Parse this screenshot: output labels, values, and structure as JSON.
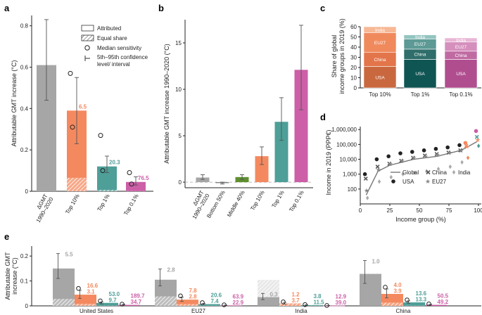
{
  "colors": {
    "grey": "#a6a6a6",
    "orange": "#f4895f",
    "teal": "#4e9f98",
    "pink": "#cc5fa7",
    "green": "#5e8f2f",
    "darkgrey": "#7a7a7a",
    "usa_a": "#c9683f",
    "china_a": "#e3754a",
    "eu_a": "#f08a5d",
    "india_a": "#f6b895",
    "usa_b": "#0f5553",
    "china_b": "#2f6e6a",
    "eu_b": "#5d9a95",
    "india_b": "#93c4c0",
    "usa_c": "#b04d8f",
    "china_c": "#c06aa2",
    "eu_c": "#d58fbd",
    "india_c": "#e8b6d5"
  },
  "panel_letters": [
    "a",
    "b",
    "c",
    "d",
    "e"
  ],
  "chart_data": [
    {
      "panel": "a",
      "type": "bar",
      "ylabel": "Attributable GMT increase (°C)",
      "ylim": [
        0,
        0.85
      ],
      "yticks": [
        "0",
        "0.2",
        "0.4",
        "0.6",
        "0.8"
      ],
      "ytick_values": [
        0,
        0.2,
        0.4,
        0.6,
        0.8
      ],
      "categories": [
        "ΔGMT\n1990–2020",
        "Top 10%",
        "Top 1%",
        "Top 0.1%"
      ],
      "values": [
        0.61,
        0.39,
        0.12,
        0.045
      ],
      "equal_share": [
        0,
        0.065,
        0.007,
        0.001
      ],
      "ci_low": [
        0.44,
        0.23,
        0.09,
        0.03
      ],
      "ci_high": [
        0.83,
        0.55,
        0.17,
        0.07
      ],
      "median_sensitivity": [
        null,
        0.57,
        0.27,
        0.09
      ],
      "median_low": [
        null,
        0.31,
        0.1,
        0.035
      ],
      "ratio_labels": [
        "",
        "6.5",
        "20.3",
        "76.5"
      ],
      "legend": {
        "attributed": "Attributed",
        "equal_share": "Equal share",
        "median": "Median sensitivity",
        "ci_line1": "5th–95th confidence",
        "ci_line2": "level/ interval"
      }
    },
    {
      "panel": "b",
      "type": "bar",
      "ylabel": "Attributable GMT increase 1990–2020 (°C)",
      "ylim": [
        -0.6,
        17.5
      ],
      "yticks": [
        "0",
        "5",
        "10",
        "15"
      ],
      "ytick_values": [
        0,
        5,
        10,
        15
      ],
      "categories": [
        "ΔGMT\n1990–2020",
        "Bottom 50%",
        "Middle 40%",
        "Top 10%",
        "Top 1%",
        "Top 0.1%"
      ],
      "values": [
        0.5,
        -0.1,
        0.55,
        2.8,
        6.5,
        12.1
      ],
      "ci_low": [
        0.3,
        -0.2,
        0.3,
        1.9,
        4.5,
        7.8
      ],
      "ci_high": [
        0.8,
        0.0,
        0.8,
        3.8,
        9.1,
        16.9
      ]
    },
    {
      "panel": "c",
      "type": "stacked_bar",
      "ylabel": "Share of global income groups in 2019 (%)",
      "ylim": [
        0,
        60
      ],
      "yticks": [
        "0",
        "10",
        "20",
        "30",
        "40",
        "50",
        "60"
      ],
      "ytick_values": [
        0,
        10,
        20,
        30,
        40,
        50,
        60
      ],
      "categories": [
        "Top 10%",
        "Top 1%",
        "Top 0.1%"
      ],
      "series": [
        {
          "name": "USA",
          "values": [
            21,
            28,
            28
          ]
        },
        {
          "name": "China",
          "values": [
            14,
            10,
            8
          ]
        },
        {
          "name": "EU27",
          "values": [
            19,
            10,
            9
          ]
        },
        {
          "name": "India",
          "values": [
            6,
            4,
            4
          ]
        }
      ]
    },
    {
      "panel": "d",
      "type": "scatter",
      "xlabel": "Income group (%)",
      "ylabel": "Income in 2019 (PPP€)",
      "xlim": [
        0,
        100
      ],
      "ylog_range": [
        1,
        6.2
      ],
      "xticks": [
        "0",
        "25",
        "50",
        "75",
        "100"
      ],
      "xtick_values": [
        0,
        25,
        50,
        75,
        100
      ],
      "yticks": [
        "100",
        "1,000",
        "10,000",
        "100,000",
        "1,000,000"
      ],
      "ytick_values": [
        2,
        3,
        4,
        5,
        6
      ],
      "x": [
        5,
        15,
        25,
        35,
        45,
        55,
        65,
        75,
        85,
        90,
        99
      ],
      "series": [
        {
          "name": "Global",
          "log_values": [
            1.6,
            3.2,
            3.6,
            3.8,
            4.0,
            4.1,
            4.2,
            4.4,
            4.6,
            4.8,
            5.2
          ]
        },
        {
          "name": "USA",
          "log_values": [
            3.0,
            4.0,
            4.2,
            4.4,
            4.5,
            4.6,
            4.7,
            4.8,
            4.95,
            5.1,
            5.9
          ]
        },
        {
          "name": "China",
          "log_values": [
            2.7,
            3.5,
            3.7,
            3.9,
            4.1,
            4.25,
            4.35,
            4.45,
            4.6,
            4.9,
            5.5
          ]
        },
        {
          "name": "EU27",
          "log_values": [
            1.9,
            3.3,
            3.7,
            3.9,
            4.1,
            4.2,
            4.3,
            4.45,
            4.6,
            4.85,
            5.3
          ]
        },
        {
          "name": "India",
          "log_values": [
            1.4,
            2.5,
            2.8,
            3.0,
            3.1,
            3.2,
            3.35,
            3.5,
            3.8,
            4.1,
            4.9
          ]
        }
      ],
      "legend": [
        "Global",
        "China",
        "India",
        "USA",
        "EU27"
      ]
    },
    {
      "panel": "e",
      "type": "bar",
      "ylabel": "Attributable GMT increase (°C)",
      "ylim": [
        0,
        0.24
      ],
      "yticks": [
        "0",
        "0.1",
        "0.2"
      ],
      "ytick_values": [
        0,
        0.1,
        0.2
      ],
      "groups": [
        {
          "name": "United States",
          "values": [
            0.15,
            0.045,
            0.012,
            0.004
          ],
          "equal_share": [
            0.028,
            0.008,
            0.001,
            0.0
          ],
          "ci_low": [
            0.11,
            0.03,
            0.008,
            0.003
          ],
          "ci_high": [
            0.21,
            0.062,
            0.016,
            0.006
          ],
          "median_sensitivity": [
            null,
            0.07,
            0.02,
            0.007
          ],
          "top_labels": [
            "5.5",
            "16.6",
            "53.0",
            "189.7"
          ],
          "bottom_labels": [
            "",
            "3.1",
            "9.7",
            "34.7"
          ]
        },
        {
          "name": "EU27",
          "values": [
            0.105,
            0.025,
            0.007,
            0.002
          ],
          "equal_share": [
            0.038,
            0.007,
            0.001,
            0.0
          ],
          "ci_low": [
            0.08,
            0.018,
            0.005,
            0.001
          ],
          "ci_high": [
            0.148,
            0.035,
            0.01,
            0.003
          ],
          "median_sensitivity": [
            null,
            0.04,
            0.013,
            0.004
          ],
          "top_labels": [
            "2.8",
            "7.8",
            "20.6",
            "63.9"
          ],
          "bottom_labels": [
            "",
            "2.8",
            "7.4",
            "22.9"
          ]
        },
        {
          "name": "India",
          "values": [
            0.035,
            0.01,
            0.003,
            0.001
          ],
          "equal_share": [
            0.104,
            0.01,
            0.001,
            0.0
          ],
          "ci_low": [
            0.025,
            0.007,
            0.002,
            0.0005
          ],
          "ci_high": [
            0.05,
            0.014,
            0.004,
            0.0015
          ],
          "median_sensitivity": [
            null,
            0.016,
            0.005,
            0.0015
          ],
          "top_labels": [
            "0.3",
            "1.2",
            "3.8",
            "12.9"
          ],
          "bottom_labels": [
            "",
            "3.7",
            "11.5",
            "39.0"
          ]
        },
        {
          "name": "China",
          "values": [
            0.128,
            0.048,
            0.014,
            0.004
          ],
          "equal_share": [
            0.13,
            0.013,
            0.001,
            0.0
          ],
          "ci_low": [
            0.09,
            0.032,
            0.01,
            0.003
          ],
          "ci_high": [
            0.182,
            0.068,
            0.02,
            0.006
          ],
          "median_sensitivity": [
            null,
            0.075,
            0.024,
            0.008
          ],
          "top_labels": [
            "1.0",
            "4.0",
            "13.6",
            "50.5"
          ],
          "bottom_labels": [
            "",
            "3.9",
            "13.3",
            "49.2"
          ]
        }
      ]
    }
  ]
}
